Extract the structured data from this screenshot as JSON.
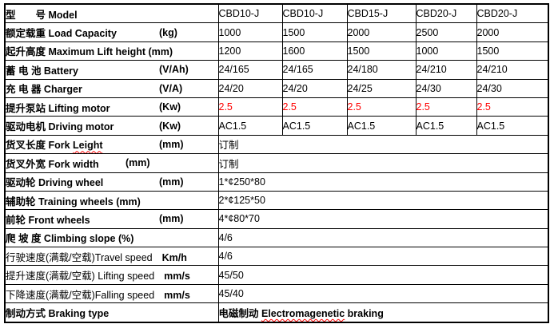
{
  "colors": {
    "highlight_red": "#ff0000",
    "border": "#000000",
    "background": "#ffffff",
    "spellcheck_squiggle": "#ff0000"
  },
  "table": {
    "rows": [
      {
        "label": "型　　号 Model",
        "unit": "",
        "unit_pos": "",
        "bold": true,
        "red": false,
        "values": [
          "CBD10-J",
          "CBD10-J",
          "CBD15-J",
          "CBD20-J",
          "CBD20-J"
        ]
      },
      {
        "label": "额定载重 Load Capacity",
        "unit": "(kg)",
        "unit_pos": "tab",
        "bold": true,
        "red": false,
        "values": [
          "1000",
          "1500",
          "2000",
          "2500",
          "2000"
        ]
      },
      {
        "label": "起升高度 Maximum Lift height (mm)",
        "unit": "",
        "unit_pos": "",
        "bold": true,
        "red": false,
        "values": [
          "1200",
          "1600",
          "1500",
          "1000",
          "1500"
        ]
      },
      {
        "label": "蓄 电 池 Battery",
        "unit": "(V/Ah)",
        "unit_pos": "tab",
        "bold": true,
        "red": false,
        "values": [
          "24/165",
          "24/165",
          "24/180",
          "24/210",
          "24/210"
        ]
      },
      {
        "label": "充 电 器 Charger",
        "unit": "(V/A)",
        "unit_pos": "tab",
        "bold": true,
        "red": false,
        "values": [
          "24/20",
          "24/20",
          "24/25",
          "24/30",
          "24/30"
        ]
      },
      {
        "label": "提升泵站 Lifting motor",
        "unit": "(Kw)",
        "unit_pos": "tab",
        "bold": true,
        "red": true,
        "values": [
          "2.5",
          "2.5",
          "2.5",
          "2.5",
          "2.5"
        ]
      },
      {
        "label": "驱动电机 Driving motor",
        "unit": "(Kw)",
        "unit_pos": "tab",
        "bold": true,
        "red": false,
        "values": [
          "AC1.5",
          "AC1.5",
          "AC1.5",
          "AC1.5",
          "AC1.5"
        ]
      },
      {
        "label": "货叉长度 Fork Leight",
        "unit": "(mm)",
        "unit_pos": "tab",
        "bold": true,
        "red": false,
        "misspell": "Leight",
        "value": "订制"
      },
      {
        "label": "货叉外宽 Fork width",
        "unit": "(mm)",
        "unit_pos": "near",
        "bold": true,
        "red": false,
        "value": "订制"
      },
      {
        "label": "驱动轮  Driving wheel",
        "unit": "(mm)",
        "unit_pos": "tab",
        "bold": true,
        "red": false,
        "value": "1*¢250*80"
      },
      {
        "label": "辅助轮 Training wheels (mm)",
        "unit": "",
        "unit_pos": "",
        "bold": true,
        "red": false,
        "value": "2*¢125*50"
      },
      {
        "label": "前轮 Front wheels",
        "unit": "(mm)",
        "unit_pos": "tab",
        "bold": true,
        "red": false,
        "value": "4*¢80*70"
      },
      {
        "label": "爬 坡 度 Climbing slope (%)",
        "unit": "",
        "unit_pos": "",
        "bold": true,
        "red": false,
        "value": "4/6"
      },
      {
        "label": "行驶速度(满载/空载)Travel speed",
        "unit": "Km/h",
        "unit_pos": "inline",
        "bold": false,
        "red": false,
        "value": "4/6"
      },
      {
        "label": "提升速度(满载/空载) Lifting speed",
        "unit": "mm/s",
        "unit_pos": "inline",
        "bold": false,
        "red": false,
        "value": "45/50"
      },
      {
        "label": "下降速度(满载/空载)Falling speed",
        "unit": "mm/s",
        "unit_pos": "inline",
        "bold": false,
        "red": false,
        "value": "45/40"
      },
      {
        "label": "制动方式 Braking type",
        "unit": "",
        "unit_pos": "",
        "bold": true,
        "red": false,
        "value": "电磁制动 Electromagenetic braking",
        "value_bold": true,
        "value_misspell": "Electromagenetic"
      }
    ]
  }
}
